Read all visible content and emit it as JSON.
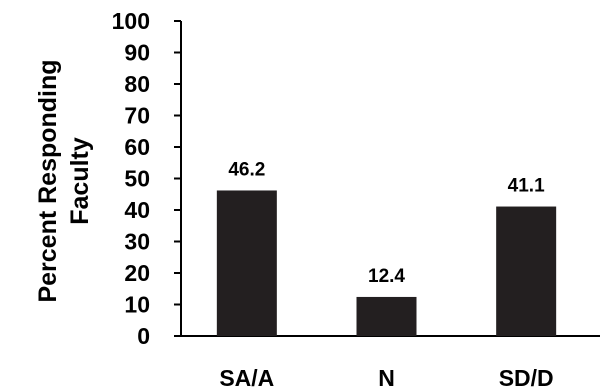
{
  "chart_data": {
    "type": "bar",
    "categories": [
      "SA/A",
      "N",
      "SD/D"
    ],
    "values": [
      46.2,
      12.4,
      41.1
    ],
    "data_labels": [
      "46.2",
      "12.4",
      "41.1"
    ],
    "ylabel_lines": [
      "Percent Responding",
      "Faculty"
    ],
    "ylim": [
      0,
      100
    ],
    "yticks": [
      "0",
      "10",
      "20",
      "30",
      "40",
      "50",
      "60",
      "70",
      "80",
      "90",
      "100"
    ],
    "bar_color": "#231f20",
    "grid": false
  }
}
